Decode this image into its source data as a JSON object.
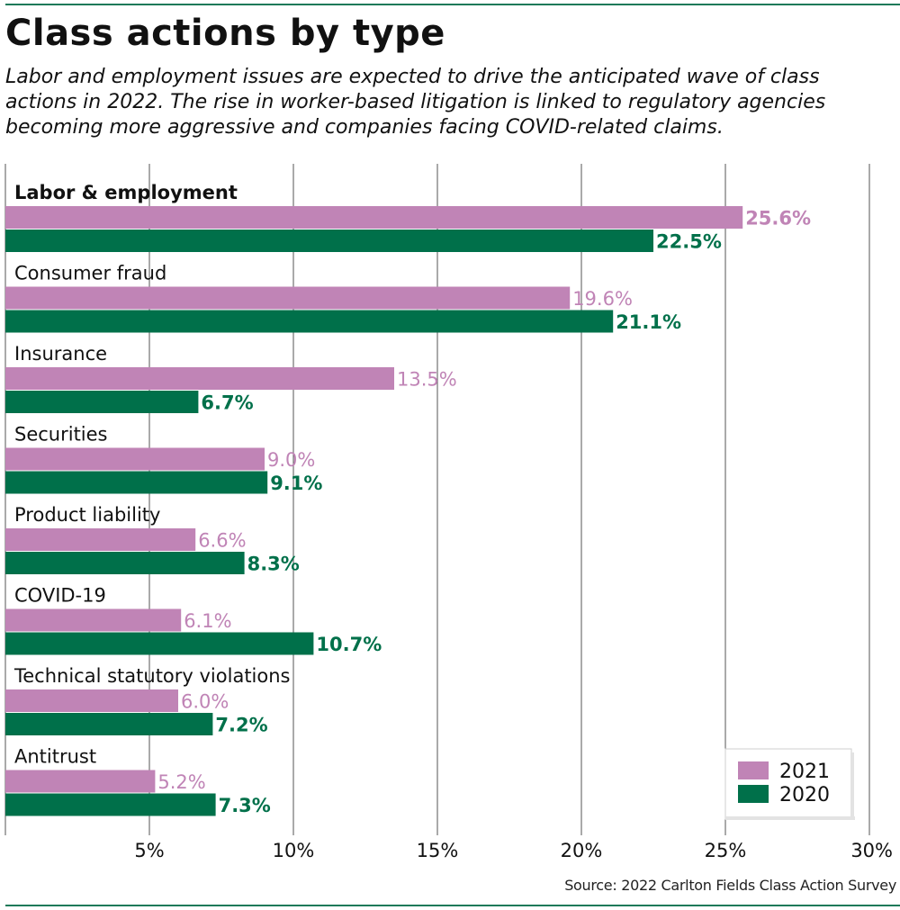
{
  "header": {
    "title": "Class actions by type",
    "subtitle": "Labor and employment issues are expected to drive the anticipated wave of class actions in 2022. The rise in worker-based litigation is linked to regulatory agencies becoming more aggressive and companies facing COVID-related claims."
  },
  "footer": {
    "source": "Source: 2022 Carlton Fields Class Action Survey"
  },
  "colors": {
    "series_2021": "#c084b6",
    "series_2020": "#00704a",
    "rule": "#1e7a59",
    "grid": "#555555"
  },
  "chart_data": {
    "type": "bar",
    "orientation": "horizontal",
    "categories": [
      "Labor & employment",
      "Consumer fraud",
      "Insurance",
      "Securities",
      "Product liability",
      "COVID-19",
      "Technical statutory violations",
      "Antitrust"
    ],
    "series": [
      {
        "name": "2021",
        "values": [
          25.6,
          19.6,
          13.5,
          9.0,
          6.6,
          6.1,
          6.0,
          5.2
        ],
        "labels": [
          "25.6%",
          "19.6%",
          "13.5%",
          "9.0%",
          "6.6%",
          "6.1%",
          "6.0%",
          "5.2%"
        ]
      },
      {
        "name": "2020",
        "values": [
          22.5,
          21.1,
          6.7,
          9.1,
          8.3,
          10.7,
          7.2,
          7.3
        ],
        "labels": [
          "22.5%",
          "21.1%",
          "6.7%",
          "9.1%",
          "8.3%",
          "10.7%",
          "7.2%",
          "7.3%"
        ]
      }
    ],
    "xlim": [
      0,
      30
    ],
    "xticks": [
      5,
      10,
      15,
      20,
      25,
      30
    ],
    "xtick_labels": [
      "5%",
      "10%",
      "15%",
      "20%",
      "25%",
      "30%"
    ],
    "grid": "vertical",
    "legend": "bottom-right",
    "value_labels": "outside-end"
  }
}
